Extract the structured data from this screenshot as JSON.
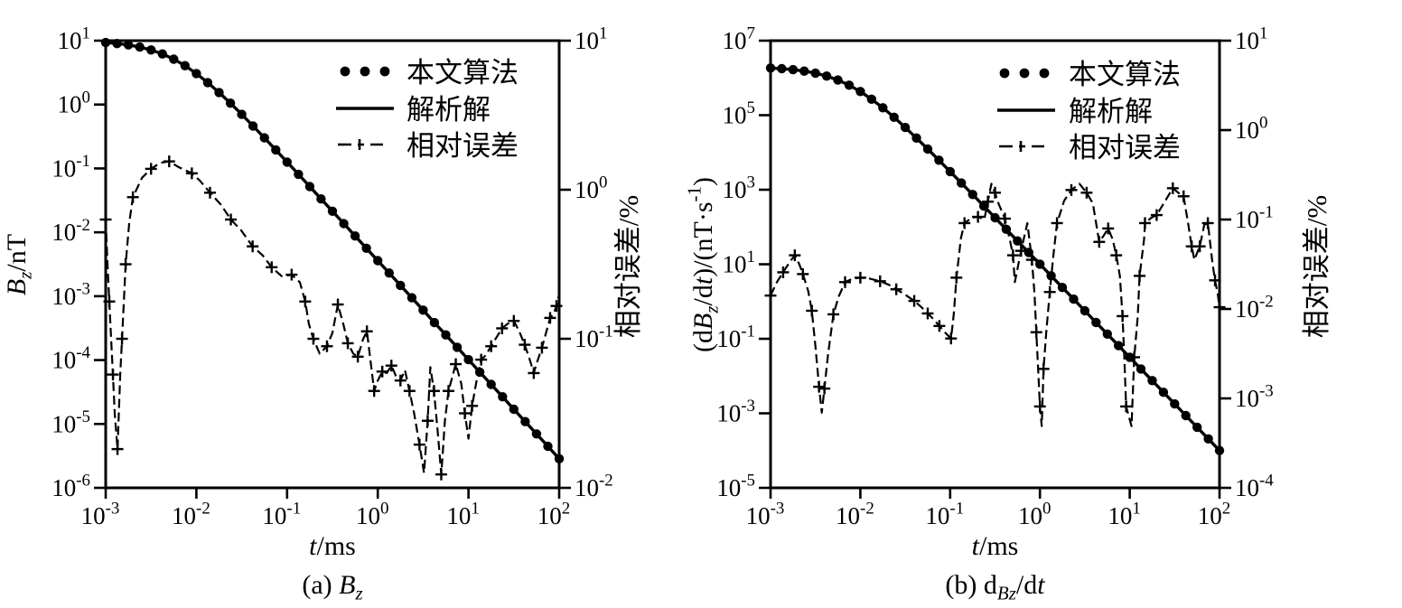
{
  "figure": {
    "background": "#ffffff",
    "ink": "#000000",
    "legend": {
      "items": [
        {
          "label": "本文算法",
          "swatch": "dots"
        },
        {
          "label": "解析解",
          "swatch": "solid-line"
        },
        {
          "label": "相对误差",
          "swatch": "dash-plus-line"
        }
      ]
    },
    "panels": [
      {
        "id": "a",
        "caption_rich": [
          {
            "t": "(a) "
          },
          {
            "t": "B",
            "i": 1
          },
          {
            "t": "z",
            "i": 1,
            "sub": 1
          }
        ],
        "xlabel_rich": [
          {
            "t": "t",
            "i": 1
          },
          {
            "t": "/ms"
          }
        ],
        "ylabel_left_rich": [
          {
            "t": "B",
            "i": 1
          },
          {
            "t": "z",
            "i": 1,
            "sub": 1
          },
          {
            "t": "/nT"
          }
        ],
        "ylabel_right": "相对误差/%",
        "x_ticks_exp": [
          -3,
          -2,
          -1,
          0,
          1,
          2
        ],
        "yleft_ticks_exp": [
          1,
          0,
          -1,
          -2,
          -3,
          -4,
          -5,
          -6
        ],
        "yright_ticks_exp": [
          1,
          0,
          -1,
          -2
        ]
      },
      {
        "id": "b",
        "caption_rich": [
          {
            "t": "(b) d"
          },
          {
            "t": "Bz",
            "i": 1,
            "sub": 1
          },
          {
            "t": "/d"
          },
          {
            "t": "t",
            "i": 1
          }
        ],
        "xlabel_rich": [
          {
            "t": "t",
            "i": 1
          },
          {
            "t": "/ms"
          }
        ],
        "ylabel_left_rich": [
          {
            "t": "(d"
          },
          {
            "t": "B",
            "i": 1
          },
          {
            "t": "z",
            "i": 1,
            "sub": 1
          },
          {
            "t": "/d"
          },
          {
            "t": "t",
            "i": 1
          },
          {
            "t": ")/(nT·s"
          },
          {
            "t": "-1",
            "sup": 1
          },
          {
            "t": ")"
          }
        ],
        "ylabel_right": "相对误差/%",
        "x_ticks_exp": [
          -3,
          -2,
          -1,
          0,
          1,
          2
        ],
        "yleft_ticks_exp": [
          7,
          5,
          3,
          1,
          -1,
          -3,
          -5
        ],
        "yright_ticks_exp": [
          1,
          0,
          -1,
          -2,
          -3,
          -4
        ]
      }
    ]
  },
  "chart_data": [
    {
      "type": "line",
      "title": "(a) Bz",
      "xlabel": "t/ms",
      "ylabel_left": "Bz/nT",
      "ylabel_right": "相对误差/%",
      "x_scale": "log",
      "y_scale": "log",
      "grid": false,
      "legend_position": "inside-top-right",
      "x_range_log10": [
        -3,
        2
      ],
      "y_left_range_log10": [
        1,
        -6
      ],
      "y_right_range_log10": [
        1,
        -2
      ],
      "series": [
        {
          "name": "本文算法",
          "axis": "left",
          "style": "dots",
          "log10_t": [
            -3,
            -2.875,
            -2.75,
            -2.625,
            -2.5,
            -2.375,
            -2.25,
            -2.125,
            -2,
            -1.875,
            -1.75,
            -1.625,
            -1.5,
            -1.375,
            -1.25,
            -1.125,
            -1,
            -0.875,
            -0.75,
            -0.625,
            -0.5,
            -0.375,
            -0.25,
            -0.125,
            0,
            0.125,
            0.25,
            0.375,
            0.5,
            0.625,
            0.75,
            0.875,
            1,
            1.125,
            1.25,
            1.375,
            1.5,
            1.625,
            1.75,
            1.875,
            2
          ],
          "log10_value": [
            0.97,
            0.955,
            0.933,
            0.9,
            0.855,
            0.792,
            0.71,
            0.608,
            0.485,
            0.344,
            0.188,
            0.021,
            -0.154,
            -0.336,
            -0.522,
            -0.71,
            -0.9,
            -1.092,
            -1.284,
            -1.477,
            -1.67,
            -1.863,
            -2.057,
            -2.25,
            -2.444,
            -2.637,
            -2.831,
            -3.025,
            -3.219,
            -3.413,
            -3.606,
            -3.8,
            -3.994,
            -4.188,
            -4.381,
            -4.575,
            -4.769,
            -4.963,
            -5.156,
            -5.35,
            -5.544
          ]
        },
        {
          "name": "解析解",
          "axis": "left",
          "style": "solid",
          "same_data_as": 0
        },
        {
          "name": "相对误差",
          "axis": "right",
          "style": "dash-plus",
          "log10_t": [
            -3,
            -2.98,
            -2.96,
            -2.94,
            -2.92,
            -2.9,
            -2.87,
            -2.84,
            -2.82,
            -2.8,
            -2.78,
            -2.74,
            -2.7,
            -2.6,
            -2.5,
            -2.4,
            -2.3,
            -2.19,
            -2.05,
            -1.96,
            -1.85,
            -1.73,
            -1.62,
            -1.51,
            -1.38,
            -1.27,
            -1.17,
            -1.06,
            -0.95,
            -0.86,
            -0.8,
            -0.76,
            -0.71,
            -0.64,
            -0.56,
            -0.5,
            -0.44,
            -0.38,
            -0.33,
            -0.27,
            -0.22,
            -0.16,
            -0.12,
            -0.08,
            -0.04,
            0,
            0.05,
            0.1,
            0.15,
            0.2,
            0.25,
            0.3,
            0.35,
            0.4,
            0.46,
            0.51,
            0.55,
            0.58,
            0.62,
            0.66,
            0.7,
            0.74,
            0.78,
            0.82,
            0.86,
            0.92,
            0.96,
            1,
            1.04,
            1.09,
            1.14,
            1.19,
            1.25,
            1.31,
            1.37,
            1.43,
            1.5,
            1.56,
            1.62,
            1.67,
            1.72,
            1.76,
            1.81,
            1.86,
            1.9,
            1.94,
            1.97,
            2
          ],
          "log10_error_pct": [
            -0.2,
            -0.5,
            -0.75,
            -1,
            -1.24,
            -1.5,
            -1.74,
            -1.24,
            -1,
            -0.75,
            -0.5,
            -0.22,
            -0.05,
            0.08,
            0.14,
            0.18,
            0.19,
            0.15,
            0.11,
            0.06,
            -0.02,
            -0.1,
            -0.2,
            -0.27,
            -0.38,
            -0.44,
            -0.52,
            -0.58,
            -0.57,
            -0.62,
            -0.75,
            -0.9,
            -1,
            -1.1,
            -1.05,
            -0.96,
            -0.77,
            -0.9,
            -1.03,
            -1.1,
            -1.12,
            -1,
            -0.95,
            -1.15,
            -1.35,
            -1.28,
            -1.22,
            -1.23,
            -1.18,
            -1.25,
            -1.28,
            -1.21,
            -1.35,
            -1.5,
            -1.71,
            -1.9,
            -1.55,
            -1.19,
            -1.35,
            -1.62,
            -1.91,
            -1.55,
            -1.35,
            -1.26,
            -1.17,
            -1.3,
            -1.5,
            -1.67,
            -1.45,
            -1.28,
            -1.14,
            -1.11,
            -1.05,
            -0.99,
            -0.93,
            -0.9,
            -0.88,
            -0.95,
            -1.04,
            -1.13,
            -1.23,
            -1.15,
            -1.06,
            -0.95,
            -0.86,
            -0.83,
            -0.78,
            -0.7
          ]
        }
      ]
    },
    {
      "type": "line",
      "title": "(b) dBz/dt",
      "xlabel": "t/ms",
      "ylabel_left": "(dBz/dt)/(nT·s-1)",
      "ylabel_right": "相对误差/%",
      "x_scale": "log",
      "y_scale": "log",
      "grid": false,
      "legend_position": "inside-top-right",
      "x_range_log10": [
        -3,
        2
      ],
      "y_left_range_log10": [
        7,
        -5
      ],
      "y_right_range_log10": [
        1,
        -4
      ],
      "series": [
        {
          "name": "本文算法",
          "axis": "left",
          "style": "dots",
          "log10_t": [
            -3,
            -2.875,
            -2.75,
            -2.625,
            -2.5,
            -2.375,
            -2.25,
            -2.125,
            -2,
            -1.875,
            -1.75,
            -1.625,
            -1.5,
            -1.375,
            -1.25,
            -1.125,
            -1,
            -0.875,
            -0.75,
            -0.625,
            -0.5,
            -0.375,
            -0.25,
            -0.125,
            0,
            0.125,
            0.25,
            0.375,
            0.5,
            0.625,
            0.75,
            0.875,
            1,
            1.125,
            1.25,
            1.375,
            1.5,
            1.625,
            1.75,
            1.875,
            2
          ],
          "log10_value": [
            6.266,
            6.249,
            6.222,
            6.184,
            6.128,
            6.05,
            5.944,
            5.806,
            5.634,
            5.43,
            5.199,
            4.944,
            4.671,
            4.386,
            4.092,
            3.792,
            3.487,
            3.18,
            2.871,
            2.561,
            2.249,
            1.938,
            1.626,
            1.314,
            1.002,
            0.689,
            0.377,
            0.064,
            -0.248,
            -0.561,
            -0.873,
            -1.185,
            -1.498,
            -1.81,
            -2.123,
            -2.435,
            -2.748,
            -3.06,
            -3.373,
            -3.685,
            -3.998
          ]
        },
        {
          "name": "解析解",
          "axis": "left",
          "style": "solid",
          "same_data_as": 0
        },
        {
          "name": "相对误差",
          "axis": "right",
          "style": "dash-plus",
          "log10_t": [
            -3,
            -2.93,
            -2.86,
            -2.79,
            -2.73,
            -2.68,
            -2.64,
            -2.58,
            -2.54,
            -2.5,
            -2.46,
            -2.43,
            -2.4,
            -2.36,
            -2.3,
            -2.24,
            -2.17,
            -2.08,
            -2,
            -1.9,
            -1.78,
            -1.68,
            -1.6,
            -1.5,
            -1.4,
            -1.32,
            -1.25,
            -1.18,
            -1.12,
            -1.05,
            -0.99,
            -0.96,
            -0.93,
            -0.88,
            -0.84,
            -0.76,
            -0.69,
            -0.62,
            -0.58,
            -0.54,
            -0.5,
            -0.47,
            -0.39,
            -0.33,
            -0.3,
            -0.28,
            -0.21,
            -0.14,
            -0.09,
            -0.06,
            -0.04,
            -0.02,
            0,
            0.02,
            0.04,
            0.07,
            0.11,
            0.15,
            0.19,
            0.27,
            0.35,
            0.44,
            0.52,
            0.59,
            0.66,
            0.71,
            0.76,
            0.81,
            0.85,
            0.89,
            0.92,
            0.94,
            0.96,
            1.02,
            1.05,
            1.09,
            1.11,
            1.16,
            1.17,
            1.24,
            1.3,
            1.39,
            1.48,
            1.54,
            1.6,
            1.65,
            1.69,
            1.72,
            1.78,
            1.83,
            1.87,
            1.92,
            1.95,
            1.98,
            2
          ],
          "log10_error_pct": [
            -1.85,
            -1.7,
            -1.59,
            -1.48,
            -1.4,
            -1.5,
            -1.61,
            -1.8,
            -2.02,
            -2.42,
            -2.87,
            -3.16,
            -2.89,
            -2.51,
            -2.06,
            -1.86,
            -1.7,
            -1.66,
            -1.65,
            -1.66,
            -1.69,
            -1.73,
            -1.78,
            -1.84,
            -1.91,
            -1.98,
            -2.05,
            -2.12,
            -2.19,
            -2.27,
            -2.33,
            -2.06,
            -1.65,
            -1.21,
            -1.04,
            -0.98,
            -0.97,
            -1,
            -0.8,
            -0.6,
            -0.7,
            -0.8,
            -0.99,
            -1.25,
            -1.4,
            -1.7,
            -1.35,
            -1.04,
            -1.45,
            -1.83,
            -2.26,
            -2.67,
            -3.09,
            -3.31,
            -2.67,
            -2.26,
            -1.81,
            -1.4,
            -1.04,
            -0.79,
            -0.67,
            -0.6,
            -0.7,
            -0.82,
            -1.25,
            -1.18,
            -1.1,
            -1.22,
            -1.4,
            -1.63,
            -2.08,
            -2.54,
            -3.09,
            -3.31,
            -2.54,
            -2.08,
            -1.63,
            -1.22,
            -1.04,
            -0.98,
            -0.95,
            -0.8,
            -0.65,
            -0.7,
            -0.74,
            -1.04,
            -1.3,
            -1.45,
            -1.3,
            -1.06,
            -1.04,
            -1.47,
            -1.68,
            -1.83,
            -1.98
          ]
        }
      ]
    }
  ]
}
